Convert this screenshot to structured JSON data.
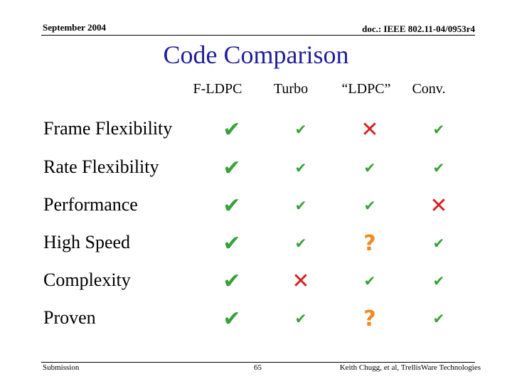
{
  "header": {
    "date": "September 2004",
    "doc": "doc.: IEEE 802.11-04/0953r4"
  },
  "title": "Code Comparison",
  "columns": [
    "F-LDPC",
    "Turbo",
    "“LDPC”",
    "Conv."
  ],
  "rows": [
    {
      "label": "Frame Flexibility",
      "marks": [
        "check",
        "check",
        "cross",
        "check"
      ]
    },
    {
      "label": "Rate Flexibility",
      "marks": [
        "check",
        "check",
        "check",
        "check"
      ]
    },
    {
      "label": "Performance",
      "marks": [
        "check",
        "check",
        "check",
        "cross"
      ]
    },
    {
      "label": "High Speed",
      "marks": [
        "check",
        "check",
        "question",
        "check"
      ]
    },
    {
      "label": "Complexity",
      "marks": [
        "check",
        "cross",
        "check",
        "check"
      ]
    },
    {
      "label": "Proven",
      "marks": [
        "check",
        "check",
        "question",
        "check"
      ]
    }
  ],
  "mark_symbols": {
    "check": "✔",
    "cross": "✕",
    "question": "?"
  },
  "colors": {
    "title": "#1f1f9c",
    "check": "#38a238",
    "cross": "#d32323",
    "question": "#f08a1e"
  },
  "footer": {
    "left": "Submission",
    "page": "65",
    "right": "Keith Chugg, et al, TrellisWare Technologies"
  }
}
